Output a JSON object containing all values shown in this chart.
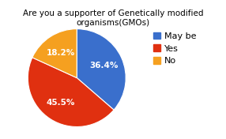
{
  "title": "Are you a supporter of Genetically modified organisms(GMOs)",
  "slices": [
    36.4,
    45.5,
    18.2
  ],
  "labels": [
    "May be",
    "Yes",
    "No"
  ],
  "colors": [
    "#3a6fcc",
    "#e03010",
    "#f5a020"
  ],
  "pct_labels": [
    "36.4%",
    "45.5%",
    "18.2%"
  ],
  "startangle": 90,
  "legend_labels": [
    "May be",
    "Yes",
    "No"
  ],
  "background_color": "#ffffff",
  "title_fontsize": 7.5,
  "pct_fontsize": 7.5,
  "legend_fontsize": 8
}
